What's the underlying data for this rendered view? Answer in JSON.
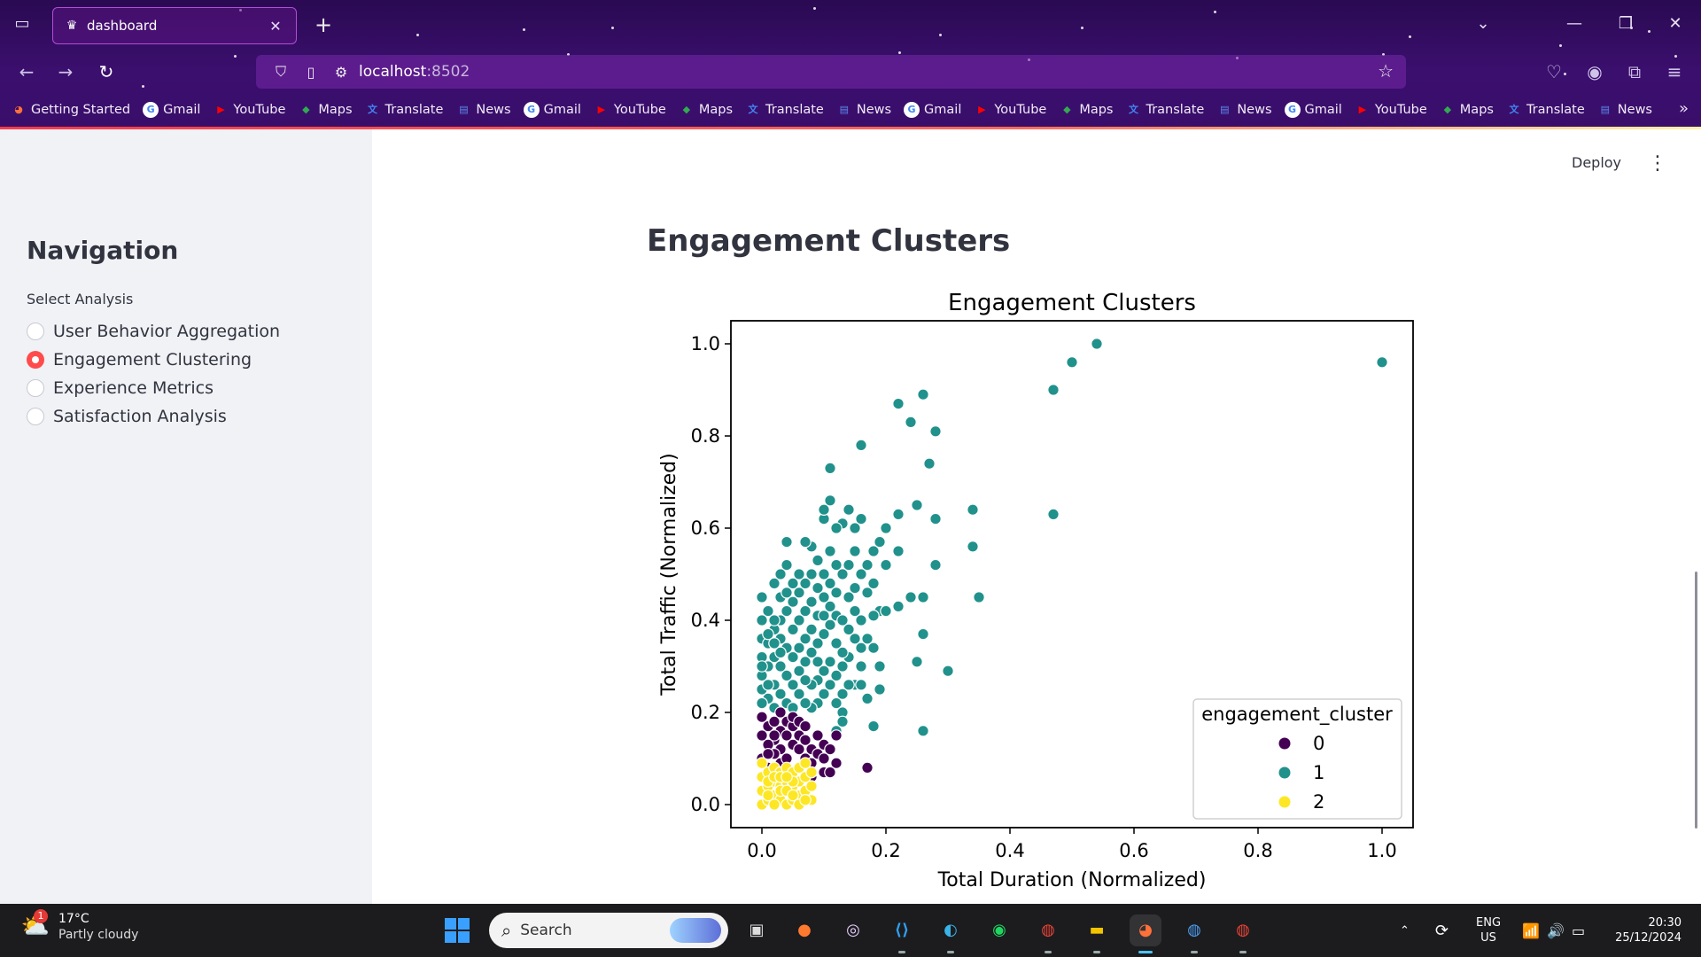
{
  "browser": {
    "tab_title": "dashboard",
    "url_host": "localhost",
    "url_port": ":8502",
    "bookmarks": [
      {
        "label": "Getting Started",
        "icon": "firefox-icon",
        "color": "#ff7139"
      },
      {
        "label": "Gmail",
        "icon": "google-icon",
        "color": "#ffffff"
      },
      {
        "label": "YouTube",
        "icon": "youtube-icon",
        "color": "#ff0000"
      },
      {
        "label": "Maps",
        "icon": "maps-icon",
        "color": "#34a853"
      },
      {
        "label": "Translate",
        "icon": "translate-icon",
        "color": "#4285f4"
      },
      {
        "label": "News",
        "icon": "news-icon",
        "color": "#5b8def"
      },
      {
        "label": "Gmail",
        "icon": "google-icon",
        "color": "#ffffff"
      },
      {
        "label": "YouTube",
        "icon": "youtube-icon",
        "color": "#ff0000"
      },
      {
        "label": "Maps",
        "icon": "maps-icon",
        "color": "#34a853"
      },
      {
        "label": "Translate",
        "icon": "translate-icon",
        "color": "#4285f4"
      },
      {
        "label": "News",
        "icon": "news-icon",
        "color": "#5b8def"
      },
      {
        "label": "Gmail",
        "icon": "google-icon",
        "color": "#ffffff"
      },
      {
        "label": "YouTube",
        "icon": "youtube-icon",
        "color": "#ff0000"
      },
      {
        "label": "Maps",
        "icon": "maps-icon",
        "color": "#34a853"
      },
      {
        "label": "Translate",
        "icon": "translate-icon",
        "color": "#4285f4"
      },
      {
        "label": "News",
        "icon": "news-icon",
        "color": "#5b8def"
      },
      {
        "label": "Gmail",
        "icon": "google-icon",
        "color": "#ffffff"
      },
      {
        "label": "YouTube",
        "icon": "youtube-icon",
        "color": "#ff0000"
      },
      {
        "label": "Maps",
        "icon": "maps-icon",
        "color": "#34a853"
      },
      {
        "label": "Translate",
        "icon": "translate-icon",
        "color": "#4285f4"
      },
      {
        "label": "News",
        "icon": "news-icon",
        "color": "#5b8def"
      }
    ]
  },
  "app": {
    "deploy_label": "Deploy",
    "page_title": "Engagement Clusters"
  },
  "sidebar": {
    "title": "Navigation",
    "radio_label": "Select Analysis",
    "options": [
      {
        "label": "User Behavior Aggregation",
        "selected": false
      },
      {
        "label": "Engagement Clustering",
        "selected": true
      },
      {
        "label": "Experience Metrics",
        "selected": false
      },
      {
        "label": "Satisfaction Analysis",
        "selected": false
      }
    ],
    "accent_color": "#ff4b4b"
  },
  "chart_data": {
    "type": "scatter",
    "title": "Engagement Clusters",
    "xlabel": "Total Duration (Normalized)",
    "ylabel": "Total Traffic (Normalized)",
    "xlim": [
      -0.05,
      1.05
    ],
    "ylim": [
      -0.05,
      1.05
    ],
    "xticks": [
      "0.0",
      "0.2",
      "0.4",
      "0.6",
      "0.8",
      "1.0"
    ],
    "yticks": [
      "0.0",
      "0.2",
      "0.4",
      "0.6",
      "0.8",
      "1.0"
    ],
    "legend_title": "engagement_cluster",
    "legend_position": "lower-right",
    "series": [
      {
        "name": "0",
        "color": "#440154",
        "points": [
          [
            0.0,
            0.19
          ],
          [
            0.01,
            0.17
          ],
          [
            0.02,
            0.14
          ],
          [
            0.03,
            0.12
          ],
          [
            0.0,
            0.1
          ],
          [
            0.01,
            0.13
          ],
          [
            0.02,
            0.18
          ],
          [
            0.03,
            0.16
          ],
          [
            0.04,
            0.15
          ],
          [
            0.05,
            0.13
          ],
          [
            0.06,
            0.12
          ],
          [
            0.07,
            0.1
          ],
          [
            0.08,
            0.09
          ],
          [
            0.04,
            0.18
          ],
          [
            0.05,
            0.17
          ],
          [
            0.06,
            0.15
          ],
          [
            0.07,
            0.14
          ],
          [
            0.08,
            0.12
          ],
          [
            0.09,
            0.11
          ],
          [
            0.1,
            0.1
          ],
          [
            0.02,
            0.11
          ],
          [
            0.03,
            0.09
          ],
          [
            0.04,
            0.1
          ],
          [
            0.05,
            0.19
          ],
          [
            0.06,
            0.18
          ],
          [
            0.01,
            0.08
          ],
          [
            0.0,
            0.15
          ],
          [
            0.09,
            0.15
          ],
          [
            0.1,
            0.13
          ],
          [
            0.11,
            0.12
          ],
          [
            0.12,
            0.09
          ],
          [
            0.1,
            0.07
          ],
          [
            0.08,
            0.06
          ],
          [
            0.11,
            0.07
          ],
          [
            0.12,
            0.15
          ],
          [
            0.17,
            0.08
          ],
          [
            0.02,
            0.15
          ],
          [
            0.07,
            0.17
          ],
          [
            0.03,
            0.2
          ],
          [
            0.01,
            0.11
          ]
        ]
      },
      {
        "name": "1",
        "color": "#21918c",
        "points": [
          [
            1.0,
            0.96
          ],
          [
            0.54,
            1.0
          ],
          [
            0.5,
            0.96
          ],
          [
            0.47,
            0.9
          ],
          [
            0.47,
            0.63
          ],
          [
            0.26,
            0.89
          ],
          [
            0.22,
            0.87
          ],
          [
            0.24,
            0.83
          ],
          [
            0.28,
            0.81
          ],
          [
            0.27,
            0.74
          ],
          [
            0.16,
            0.78
          ],
          [
            0.11,
            0.73
          ],
          [
            0.11,
            0.66
          ],
          [
            0.34,
            0.64
          ],
          [
            0.25,
            0.65
          ],
          [
            0.22,
            0.63
          ],
          [
            0.28,
            0.62
          ],
          [
            0.34,
            0.56
          ],
          [
            0.28,
            0.52
          ],
          [
            0.22,
            0.55
          ],
          [
            0.35,
            0.45
          ],
          [
            0.26,
            0.45
          ],
          [
            0.24,
            0.45
          ],
          [
            0.22,
            0.43
          ],
          [
            0.26,
            0.37
          ],
          [
            0.25,
            0.31
          ],
          [
            0.3,
            0.29
          ],
          [
            0.26,
            0.16
          ],
          [
            0.18,
            0.17
          ],
          [
            0.19,
            0.25
          ],
          [
            0.17,
            0.23
          ],
          [
            0.15,
            0.26
          ],
          [
            0.16,
            0.26
          ],
          [
            0.13,
            0.2
          ],
          [
            0.12,
            0.16
          ],
          [
            0.13,
            0.18
          ],
          [
            0.18,
            0.34
          ],
          [
            0.17,
            0.36
          ],
          [
            0.19,
            0.42
          ],
          [
            0.18,
            0.55
          ],
          [
            0.19,
            0.57
          ],
          [
            0.15,
            0.6
          ],
          [
            0.16,
            0.62
          ],
          [
            0.14,
            0.64
          ],
          [
            0.13,
            0.61
          ],
          [
            0.12,
            0.6
          ],
          [
            0.1,
            0.62
          ],
          [
            0.1,
            0.64
          ],
          [
            0.08,
            0.56
          ],
          [
            0.09,
            0.53
          ],
          [
            0.07,
            0.57
          ],
          [
            0.04,
            0.57
          ],
          [
            0.04,
            0.52
          ],
          [
            0.03,
            0.5
          ],
          [
            0.03,
            0.45
          ],
          [
            0.0,
            0.45
          ],
          [
            0.02,
            0.48
          ],
          [
            0.01,
            0.42
          ],
          [
            0.0,
            0.4
          ],
          [
            0.0,
            0.36
          ],
          [
            0.0,
            0.32
          ],
          [
            0.0,
            0.28
          ],
          [
            0.0,
            0.25
          ],
          [
            0.01,
            0.23
          ],
          [
            0.02,
            0.21
          ],
          [
            0.01,
            0.35
          ],
          [
            0.02,
            0.38
          ],
          [
            0.03,
            0.4
          ],
          [
            0.04,
            0.42
          ],
          [
            0.05,
            0.44
          ],
          [
            0.06,
            0.46
          ],
          [
            0.07,
            0.48
          ],
          [
            0.08,
            0.5
          ],
          [
            0.09,
            0.47
          ],
          [
            0.1,
            0.45
          ],
          [
            0.11,
            0.43
          ],
          [
            0.12,
            0.41
          ],
          [
            0.13,
            0.4
          ],
          [
            0.14,
            0.38
          ],
          [
            0.15,
            0.36
          ],
          [
            0.16,
            0.34
          ],
          [
            0.14,
            0.32
          ],
          [
            0.13,
            0.3
          ],
          [
            0.12,
            0.28
          ],
          [
            0.11,
            0.26
          ],
          [
            0.1,
            0.24
          ],
          [
            0.09,
            0.22
          ],
          [
            0.08,
            0.21
          ],
          [
            0.07,
            0.22
          ],
          [
            0.06,
            0.24
          ],
          [
            0.05,
            0.26
          ],
          [
            0.04,
            0.28
          ],
          [
            0.03,
            0.3
          ],
          [
            0.02,
            0.32
          ],
          [
            0.01,
            0.3
          ],
          [
            0.02,
            0.26
          ],
          [
            0.03,
            0.24
          ],
          [
            0.04,
            0.22
          ],
          [
            0.05,
            0.21
          ],
          [
            0.06,
            0.29
          ],
          [
            0.07,
            0.31
          ],
          [
            0.08,
            0.33
          ],
          [
            0.09,
            0.35
          ],
          [
            0.1,
            0.37
          ],
          [
            0.11,
            0.39
          ],
          [
            0.12,
            0.35
          ],
          [
            0.13,
            0.33
          ],
          [
            0.14,
            0.45
          ],
          [
            0.15,
            0.47
          ],
          [
            0.16,
            0.5
          ],
          [
            0.17,
            0.52
          ],
          [
            0.15,
            0.55
          ],
          [
            0.13,
            0.5
          ],
          [
            0.12,
            0.52
          ],
          [
            0.11,
            0.55
          ],
          [
            0.1,
            0.5
          ],
          [
            0.09,
            0.41
          ],
          [
            0.08,
            0.38
          ],
          [
            0.07,
            0.36
          ],
          [
            0.06,
            0.34
          ],
          [
            0.05,
            0.32
          ],
          [
            0.04,
            0.34
          ],
          [
            0.03,
            0.36
          ],
          [
            0.02,
            0.4
          ],
          [
            0.01,
            0.37
          ],
          [
            0.05,
            0.38
          ],
          [
            0.06,
            0.4
          ],
          [
            0.07,
            0.42
          ],
          [
            0.08,
            0.44
          ],
          [
            0.06,
            0.5
          ],
          [
            0.05,
            0.48
          ],
          [
            0.04,
            0.46
          ],
          [
            0.11,
            0.31
          ],
          [
            0.1,
            0.29
          ],
          [
            0.09,
            0.27
          ],
          [
            0.08,
            0.26
          ],
          [
            0.07,
            0.27
          ],
          [
            0.14,
            0.26
          ],
          [
            0.13,
            0.24
          ],
          [
            0.12,
            0.22
          ],
          [
            0.16,
            0.4
          ],
          [
            0.17,
            0.46
          ],
          [
            0.18,
            0.48
          ],
          [
            0.2,
            0.52
          ],
          [
            0.2,
            0.6
          ],
          [
            0.19,
            0.3
          ],
          [
            0.16,
            0.3
          ],
          [
            0.15,
            0.42
          ],
          [
            0.14,
            0.52
          ],
          [
            0.18,
            0.41
          ],
          [
            0.2,
            0.42
          ],
          [
            0.12,
            0.46
          ],
          [
            0.11,
            0.48
          ],
          [
            0.1,
            0.41
          ],
          [
            0.09,
            0.31
          ],
          [
            0.03,
            0.33
          ],
          [
            0.02,
            0.35
          ],
          [
            0.01,
            0.26
          ],
          [
            0.0,
            0.3
          ],
          [
            0.0,
            0.22
          ]
        ]
      },
      {
        "name": "2",
        "color": "#fde725",
        "points": [
          [
            0.0,
            0.0
          ],
          [
            0.01,
            0.01
          ],
          [
            0.02,
            0.02
          ],
          [
            0.03,
            0.01
          ],
          [
            0.04,
            0.0
          ],
          [
            0.05,
            0.01
          ],
          [
            0.06,
            0.02
          ],
          [
            0.07,
            0.03
          ],
          [
            0.0,
            0.03
          ],
          [
            0.01,
            0.04
          ],
          [
            0.02,
            0.05
          ],
          [
            0.03,
            0.04
          ],
          [
            0.04,
            0.05
          ],
          [
            0.05,
            0.04
          ],
          [
            0.06,
            0.05
          ],
          [
            0.07,
            0.06
          ],
          [
            0.0,
            0.06
          ],
          [
            0.01,
            0.07
          ],
          [
            0.02,
            0.08
          ],
          [
            0.03,
            0.07
          ],
          [
            0.04,
            0.08
          ],
          [
            0.05,
            0.07
          ],
          [
            0.06,
            0.08
          ],
          [
            0.07,
            0.09
          ],
          [
            0.08,
            0.04
          ],
          [
            0.08,
            0.01
          ],
          [
            0.0,
            0.09
          ],
          [
            0.01,
            0.02
          ],
          [
            0.02,
            0.0
          ],
          [
            0.03,
            0.03
          ],
          [
            0.04,
            0.03
          ],
          [
            0.05,
            0.02
          ],
          [
            0.06,
            0.0
          ],
          [
            0.07,
            0.01
          ],
          [
            0.08,
            0.07
          ],
          [
            0.01,
            0.05
          ],
          [
            0.02,
            0.06
          ],
          [
            0.03,
            0.06
          ],
          [
            0.05,
            0.05
          ],
          [
            0.04,
            0.06
          ]
        ]
      }
    ]
  },
  "taskbar": {
    "weather_temp": "17°C",
    "weather_cond": "Partly cloudy",
    "weather_badge": "1",
    "search_placeholder": "Search",
    "lang_top": "ENG",
    "lang_bottom": "US",
    "time": "20:30",
    "date": "25/12/2024"
  }
}
